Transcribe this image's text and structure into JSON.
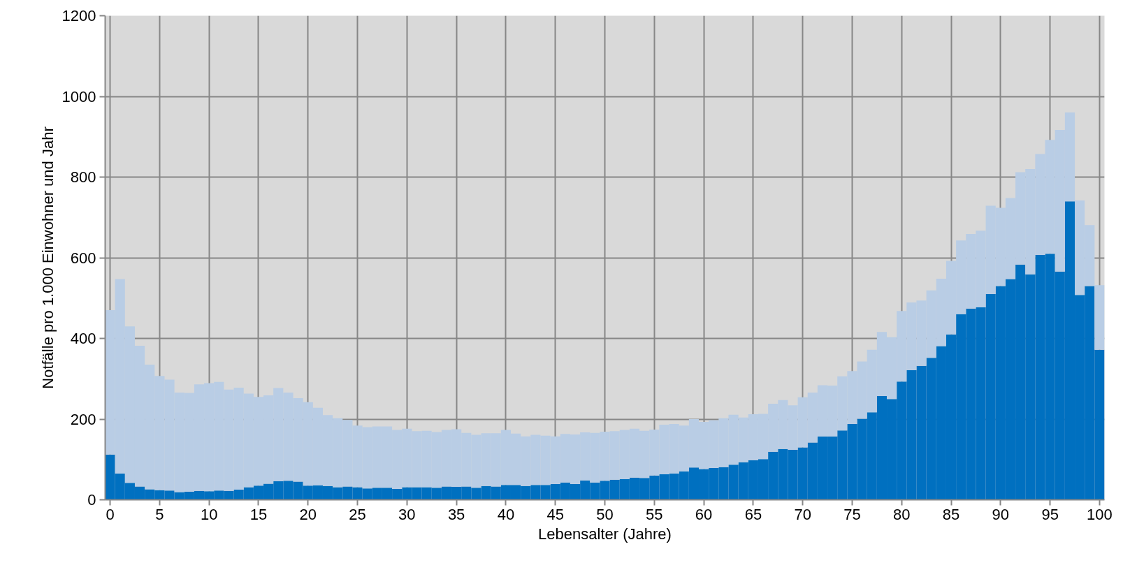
{
  "chart_data": {
    "type": "bar",
    "stacked": true,
    "xlabel": "Lebensalter (Jahre)",
    "ylabel": "Notfälle pro 1.000 Einwohner und Jahr",
    "x": [
      0,
      1,
      2,
      3,
      4,
      5,
      6,
      7,
      8,
      9,
      10,
      11,
      12,
      13,
      14,
      15,
      16,
      17,
      18,
      19,
      20,
      21,
      22,
      23,
      24,
      25,
      26,
      27,
      28,
      29,
      30,
      31,
      32,
      33,
      34,
      35,
      36,
      37,
      38,
      39,
      40,
      41,
      42,
      43,
      44,
      45,
      46,
      47,
      48,
      49,
      50,
      51,
      52,
      53,
      54,
      55,
      56,
      57,
      58,
      59,
      60,
      61,
      62,
      63,
      64,
      65,
      66,
      67,
      68,
      69,
      70,
      71,
      72,
      73,
      74,
      75,
      76,
      77,
      78,
      79,
      80,
      81,
      82,
      83,
      84,
      85,
      86,
      87,
      88,
      89,
      90,
      91,
      92,
      93,
      94,
      95,
      96,
      97,
      98,
      99,
      100
    ],
    "series": [
      {
        "color": "#0070c0",
        "values": [
          112,
          65,
          42,
          33,
          26,
          24,
          23,
          19,
          20,
          22,
          21,
          23,
          22,
          25,
          31,
          35,
          40,
          46,
          47,
          45,
          35,
          36,
          34,
          31,
          33,
          31,
          28,
          30,
          30,
          27,
          31,
          31,
          31,
          30,
          33,
          32,
          33,
          30,
          34,
          33,
          37,
          37,
          34,
          37,
          37,
          39,
          43,
          39,
          48,
          43,
          47,
          50,
          51,
          55,
          54,
          60,
          63,
          65,
          70,
          80,
          76,
          79,
          81,
          87,
          93,
          98,
          101,
          119,
          126,
          124,
          130,
          142,
          157,
          157,
          172,
          188,
          201,
          217,
          257,
          250,
          293,
          321,
          332,
          352,
          381,
          410,
          460,
          474,
          477,
          510,
          530,
          547,
          583,
          559,
          607,
          610,
          566,
          740,
          508,
          530,
          372
        ]
      },
      {
        "color": "#b9cde5",
        "values": [
          358,
          482,
          388,
          349,
          309,
          283,
          275,
          247,
          245,
          264,
          268,
          269,
          251,
          253,
          232,
          220,
          219,
          231,
          219,
          207,
          207,
          192,
          176,
          171,
          165,
          153,
          152,
          152,
          152,
          146,
          145,
          139,
          140,
          138,
          140,
          143,
          133,
          131,
          131,
          132,
          136,
          127,
          123,
          124,
          122,
          118,
          120,
          123,
          119,
          123,
          122,
          120,
          122,
          121,
          117,
          114,
          123,
          123,
          114,
          120,
          117,
          118,
          121,
          124,
          111,
          114,
          112,
          119,
          121,
          110,
          124,
          124,
          127,
          126,
          134,
          131,
          142,
          155,
          159,
          153,
          175,
          168,
          162,
          167,
          167,
          182,
          183,
          185,
          190,
          219,
          194,
          201,
          229,
          261,
          250,
          282,
          351,
          220,
          234,
          151,
          160
        ]
      }
    ],
    "xlim": [
      -0.5,
      100.5
    ],
    "xticks": [
      0,
      5,
      10,
      15,
      20,
      25,
      30,
      35,
      40,
      45,
      50,
      55,
      60,
      65,
      70,
      75,
      80,
      85,
      90,
      95,
      100
    ],
    "ylim": [
      0,
      1200
    ],
    "yticks": [
      0,
      200,
      400,
      600,
      800,
      1000,
      1200
    ],
    "grid": true
  }
}
